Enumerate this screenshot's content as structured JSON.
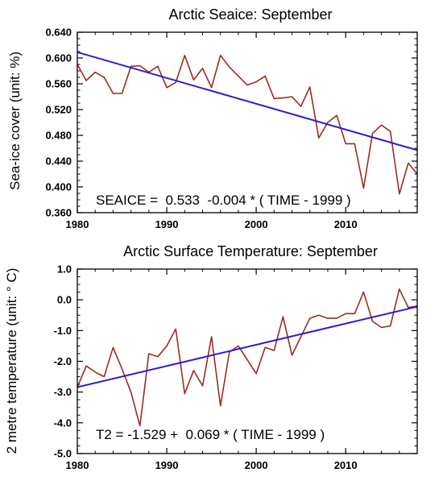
{
  "chart_data": [
    {
      "type": "line",
      "title": "Arctic Seaice: September",
      "ylabel": "Sea-ice cover  (unit: %)",
      "xlabel": "",
      "xlim": [
        1980,
        2018
      ],
      "ylim": [
        0.36,
        0.64
      ],
      "x_ticks": [
        1980,
        1990,
        2000,
        2010
      ],
      "x_tick_labels": [
        "1980",
        "1990",
        "2000",
        "2010"
      ],
      "y_ticks": [
        0.36,
        0.4,
        0.44,
        0.48,
        0.52,
        0.56,
        0.6,
        0.64
      ],
      "y_tick_labels": [
        "0.360",
        "0.400",
        "0.440",
        "0.480",
        "0.520",
        "0.560",
        "0.600",
        "0.640"
      ],
      "grid": false,
      "annotation": "SEAICE =  0.533  -0.004 * ( TIME - 1999 )",
      "series": [
        {
          "kind": "observed",
          "color": "#9B2D1F",
          "x": [
            1980,
            1981,
            1982,
            1983,
            1984,
            1985,
            1986,
            1987,
            1988,
            1989,
            1990,
            1991,
            1992,
            1993,
            1994,
            1995,
            1996,
            1997,
            1998,
            1999,
            2000,
            2001,
            2002,
            2003,
            2004,
            2005,
            2006,
            2007,
            2008,
            2009,
            2010,
            2011,
            2012,
            2013,
            2014,
            2015,
            2016,
            2017,
            2018
          ],
          "values": [
            0.59,
            0.565,
            0.578,
            0.57,
            0.545,
            0.545,
            0.587,
            0.588,
            0.578,
            0.587,
            0.554,
            0.562,
            0.604,
            0.566,
            0.584,
            0.554,
            0.604,
            0.586,
            0.572,
            0.558,
            0.563,
            0.572,
            0.537,
            0.538,
            0.54,
            0.525,
            0.555,
            0.476,
            0.5,
            0.511,
            0.467,
            0.467,
            0.398,
            0.483,
            0.496,
            0.486,
            0.389,
            0.437,
            0.42
          ]
        },
        {
          "kind": "trend",
          "color": "#2A1FCC",
          "x": [
            1980,
            2018
          ],
          "values": [
            0.609,
            0.457
          ]
        }
      ]
    },
    {
      "type": "line",
      "title": "Arctic Surface Temperature: September",
      "ylabel": "2 metre temperature  (unit:  ° C)",
      "xlabel": "",
      "xlim": [
        1980,
        2018
      ],
      "ylim": [
        -5.0,
        1.0
      ],
      "x_ticks": [
        1980,
        1990,
        2000,
        2010
      ],
      "x_tick_labels": [
        "1980",
        "1990",
        "2000",
        "2010"
      ],
      "y_ticks": [
        -5.0,
        -4.0,
        -3.0,
        -2.0,
        -1.0,
        0.0,
        1.0
      ],
      "y_tick_labels": [
        "-5.0",
        "-4.0",
        "-3.0",
        "-2.0",
        "-1.0",
        "0.0",
        "1.0"
      ],
      "grid": false,
      "annotation": "T2 = -1.529 +  0.069 * ( TIME - 1999 )",
      "series": [
        {
          "kind": "observed",
          "color": "#9B2D1F",
          "x": [
            1980,
            1981,
            1982,
            1983,
            1984,
            1985,
            1986,
            1987,
            1988,
            1989,
            1990,
            1991,
            1992,
            1993,
            1994,
            1995,
            1996,
            1997,
            1998,
            1999,
            2000,
            2001,
            2002,
            2003,
            2004,
            2005,
            2006,
            2007,
            2008,
            2009,
            2010,
            2011,
            2012,
            2013,
            2014,
            2015,
            2016,
            2017,
            2018
          ],
          "values": [
            -2.85,
            -2.15,
            -2.35,
            -2.5,
            -1.55,
            -2.25,
            -3.0,
            -4.1,
            -1.75,
            -1.85,
            -1.5,
            -0.95,
            -3.05,
            -2.3,
            -2.8,
            -1.2,
            -3.45,
            -1.7,
            -1.5,
            -1.95,
            -2.4,
            -1.55,
            -1.65,
            -0.55,
            -1.8,
            -1.2,
            -0.6,
            -0.5,
            -0.6,
            -0.6,
            -0.45,
            -0.45,
            0.25,
            -0.7,
            -0.9,
            -0.85,
            0.35,
            -0.25,
            -0.2
          ]
        },
        {
          "kind": "trend",
          "color": "#2A1FCC",
          "x": [
            1980,
            2018
          ],
          "values": [
            -2.84,
            -0.22
          ]
        }
      ]
    }
  ]
}
